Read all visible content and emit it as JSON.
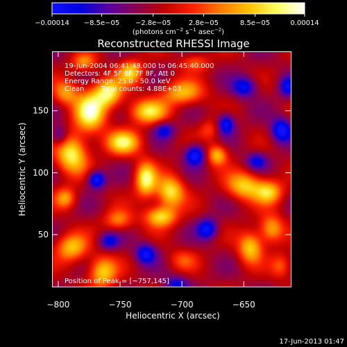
{
  "chart_data": {
    "type": "heatmap",
    "title": "Reconstructed RHESSI Image",
    "xlabel": "Heliocentric X (arcsec)",
    "ylabel": "Heliocentric Y (arcsec)",
    "xlim": [
      -805,
      -612
    ],
    "ylim": [
      8,
      198
    ],
    "x_ticks": [
      -800,
      -750,
      -700,
      -650
    ],
    "x_tick_labels": [
      "−800",
      "−750",
      "−700",
      "−650"
    ],
    "y_ticks": [
      50,
      100,
      150
    ],
    "y_tick_labels": [
      "50",
      "100",
      "150"
    ],
    "colorbar": {
      "min": -0.00014,
      "max": 0.00014,
      "ticks": [
        -0.00014,
        -8.5e-05,
        -2.8e-05,
        2.8e-05,
        8.5e-05,
        0.00014
      ],
      "tick_labels": [
        "−0.00014",
        "−8.5e−05",
        "−2.8e−05",
        "2.8e−05",
        "8.5e−05",
        "0.00014"
      ],
      "units_main": "(photons cm",
      "units_exp1": "−2",
      "units_mid": " s",
      "units_exp2": "−1",
      "units_end": " asec",
      "units_exp3": "−2",
      "units_close": ")",
      "colors": [
        "#1010ff",
        "#0000e0",
        "#5a00a0",
        "#8a0050",
        "#c00000",
        "#ff2000",
        "#ff7a00",
        "#ffc000",
        "#ffff60",
        "#ffffff"
      ]
    },
    "peak": {
      "x": -757,
      "y": 145,
      "value": 0.00014
    },
    "blobs": [
      {
        "x": -775,
        "y": 150,
        "v": 1.0,
        "sx": 9,
        "sy": 12
      },
      {
        "x": -760,
        "y": 165,
        "v": 0.9,
        "sx": 8,
        "sy": 8
      },
      {
        "x": -790,
        "y": 115,
        "v": 0.95,
        "sx": 9,
        "sy": 11
      },
      {
        "x": -748,
        "y": 125,
        "v": 0.85,
        "sx": 10,
        "sy": 7
      },
      {
        "x": -728,
        "y": 150,
        "v": 0.8,
        "sx": 11,
        "sy": 7
      },
      {
        "x": -700,
        "y": 165,
        "v": 0.7,
        "sx": 12,
        "sy": 7
      },
      {
        "x": -795,
        "y": 165,
        "v": 0.6,
        "sx": 7,
        "sy": 7
      },
      {
        "x": -730,
        "y": 95,
        "v": 0.95,
        "sx": 6,
        "sy": 10
      },
      {
        "x": -710,
        "y": 85,
        "v": 0.9,
        "sx": 8,
        "sy": 9
      },
      {
        "x": -718,
        "y": 65,
        "v": 0.85,
        "sx": 9,
        "sy": 6
      },
      {
        "x": -672,
        "y": 115,
        "v": 0.75,
        "sx": 6,
        "sy": 6
      },
      {
        "x": -650,
        "y": 90,
        "v": 0.8,
        "sx": 10,
        "sy": 8
      },
      {
        "x": -630,
        "y": 85,
        "v": 0.75,
        "sx": 8,
        "sy": 7
      },
      {
        "x": -628,
        "y": 55,
        "v": 0.7,
        "sx": 7,
        "sy": 8
      },
      {
        "x": -645,
        "y": 40,
        "v": 0.8,
        "sx": 7,
        "sy": 9
      },
      {
        "x": -790,
        "y": 40,
        "v": 0.75,
        "sx": 9,
        "sy": 8
      },
      {
        "x": -765,
        "y": 20,
        "v": 0.8,
        "sx": 8,
        "sy": 9
      },
      {
        "x": -752,
        "y": 62,
        "v": 0.55,
        "sx": 8,
        "sy": 6
      },
      {
        "x": -742,
        "y": 182,
        "v": 0.75,
        "sx": 7,
        "sy": 7
      },
      {
        "x": -795,
        "y": 80,
        "v": 0.6,
        "sx": 6,
        "sy": 6
      },
      {
        "x": -700,
        "y": 30,
        "v": 0.35,
        "sx": 8,
        "sy": 6
      },
      {
        "x": -620,
        "y": 25,
        "v": 0.45,
        "sx": 6,
        "sy": 7
      },
      {
        "x": -690,
        "y": 190,
        "v": 0.45,
        "sx": 8,
        "sy": 5
      },
      {
        "x": -780,
        "y": 190,
        "v": 0.55,
        "sx": 7,
        "sy": 5
      },
      {
        "x": -678,
        "y": 135,
        "v": 0.35,
        "sx": 6,
        "sy": 6
      },
      {
        "x": -770,
        "y": 95,
        "v": -0.85,
        "sx": 5,
        "sy": 5
      },
      {
        "x": -690,
        "y": 115,
        "v": -0.8,
        "sx": 6,
        "sy": 6
      },
      {
        "x": -665,
        "y": 140,
        "v": -0.75,
        "sx": 5,
        "sy": 6
      },
      {
        "x": -620,
        "y": 135,
        "v": -0.8,
        "sx": 6,
        "sy": 7
      },
      {
        "x": -730,
        "y": 35,
        "v": -0.7,
        "sx": 6,
        "sy": 6
      },
      {
        "x": -680,
        "y": 55,
        "v": -0.7,
        "sx": 6,
        "sy": 6
      },
      {
        "x": -715,
        "y": 135,
        "v": -0.55,
        "sx": 6,
        "sy": 5
      },
      {
        "x": -650,
        "y": 170,
        "v": -0.65,
        "sx": 7,
        "sy": 6
      },
      {
        "x": -760,
        "y": 45,
        "v": -0.55,
        "sx": 6,
        "sy": 5
      },
      {
        "x": -800,
        "y": 130,
        "v": -0.5,
        "sx": 5,
        "sy": 6
      },
      {
        "x": -640,
        "y": 110,
        "v": -0.55,
        "sx": 6,
        "sy": 5
      },
      {
        "x": -705,
        "y": 10,
        "v": -0.55,
        "sx": 7,
        "sy": 5
      },
      {
        "x": -615,
        "y": 170,
        "v": -0.6,
        "sx": 5,
        "sy": 6
      }
    ]
  },
  "info": {
    "time": "19-Jun-2004 06:41:48.000 to 06:45:40.000",
    "detectors": "Detectors: 4F 5F 6F 7F 8F, Att 0",
    "energy": "Energy Range: 25.0 - 50.0 keV",
    "method": "Clean",
    "counts": "Total counts: 4.88E+03",
    "peak_text": "Position of Peak = [−757,145]"
  },
  "footer": {
    "date": "17-Jun-2013 01:47"
  }
}
